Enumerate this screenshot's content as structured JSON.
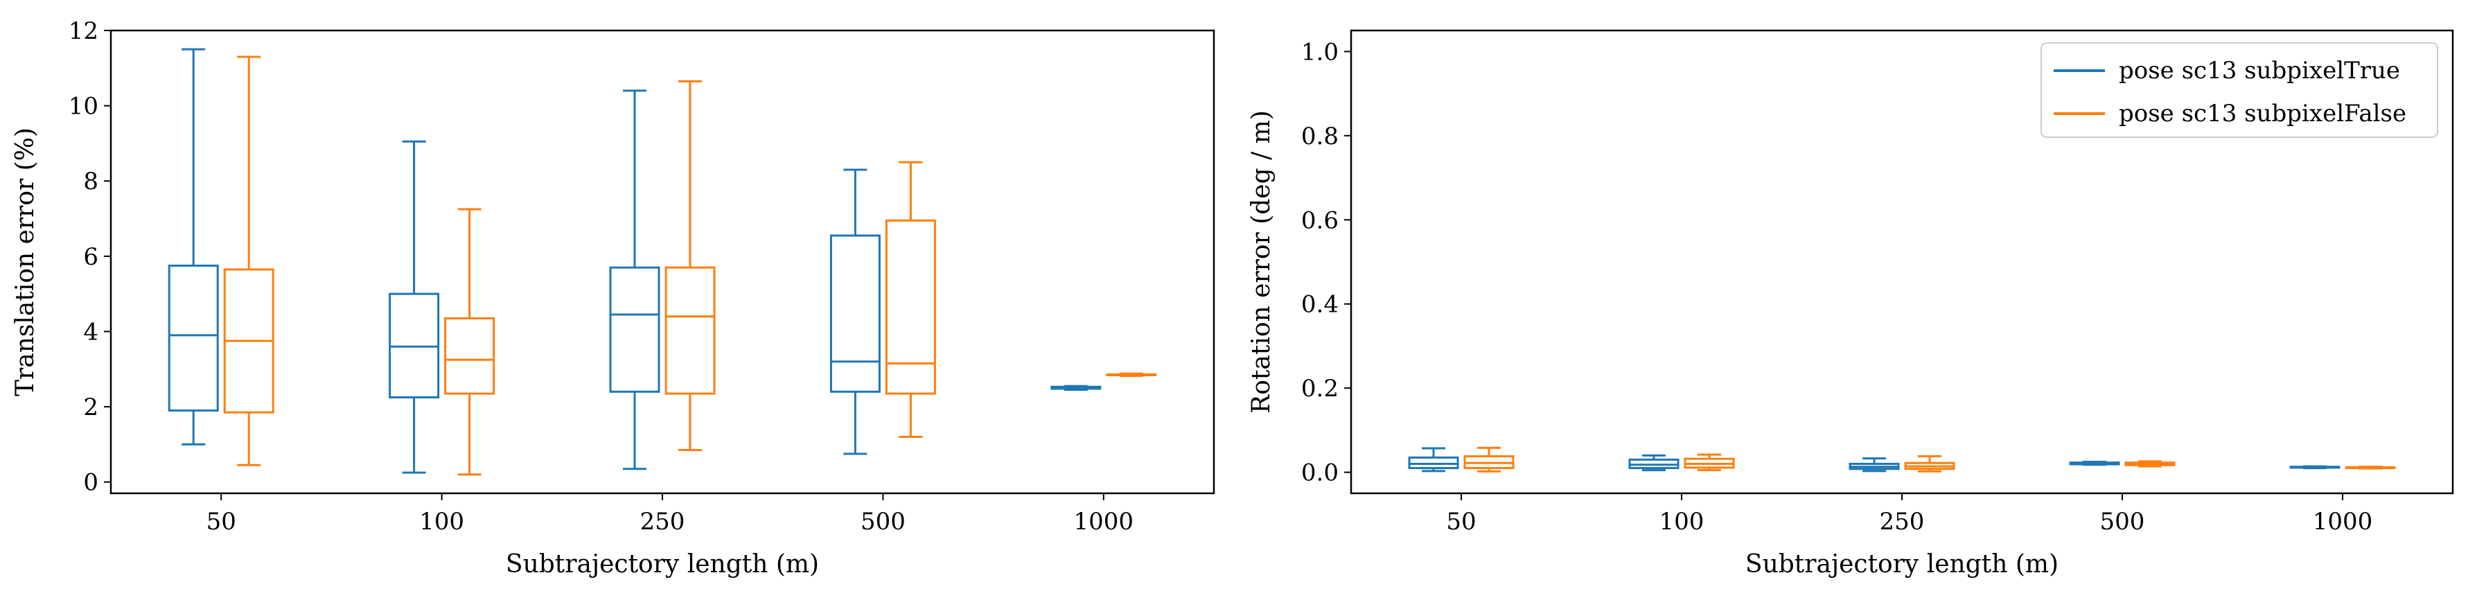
{
  "chart_data": [
    {
      "type": "box",
      "categories": [
        "50",
        "100",
        "250",
        "500",
        "1000"
      ],
      "xlabel": "Subtrajectory length (m)",
      "ylabel": "Translation error (%)",
      "ylim": [
        -0.3,
        12
      ],
      "yticks": [
        0,
        2,
        4,
        6,
        8,
        10,
        12
      ],
      "grid": false,
      "legend": "none",
      "colors": [
        "#1f77b4",
        "#ff7f0e"
      ],
      "series": [
        {
          "boxes": [
            {
              "whisker_low": 1.0,
              "q1": 1.9,
              "median": 3.9,
              "q3": 5.75,
              "whisker_high": 11.5
            },
            {
              "whisker_low": 0.25,
              "q1": 2.25,
              "median": 3.6,
              "q3": 5.0,
              "whisker_high": 9.05
            },
            {
              "whisker_low": 0.35,
              "q1": 2.4,
              "median": 4.45,
              "q3": 5.7,
              "whisker_high": 10.4
            },
            {
              "whisker_low": 0.75,
              "q1": 2.4,
              "median": 3.2,
              "q3": 6.55,
              "whisker_high": 8.3
            },
            {
              "whisker_low": 2.45,
              "q1": 2.48,
              "median": 2.5,
              "q3": 2.53,
              "whisker_high": 2.55
            }
          ]
        },
        {
          "boxes": [
            {
              "whisker_low": 0.45,
              "q1": 1.85,
              "median": 3.75,
              "q3": 5.65,
              "whisker_high": 11.3
            },
            {
              "whisker_low": 0.2,
              "q1": 2.35,
              "median": 3.25,
              "q3": 4.35,
              "whisker_high": 7.25
            },
            {
              "whisker_low": 0.85,
              "q1": 2.35,
              "median": 4.4,
              "q3": 5.7,
              "whisker_high": 10.65
            },
            {
              "whisker_low": 1.2,
              "q1": 2.35,
              "median": 3.15,
              "q3": 6.95,
              "whisker_high": 8.5
            },
            {
              "whisker_low": 2.82,
              "q1": 2.84,
              "median": 2.85,
              "q3": 2.86,
              "whisker_high": 2.88
            }
          ]
        }
      ]
    },
    {
      "type": "box",
      "categories": [
        "50",
        "100",
        "250",
        "500",
        "1000"
      ],
      "xlabel": "Subtrajectory length (m)",
      "ylabel": "Rotation error (deg / m)",
      "ylim": [
        -0.05,
        1.05
      ],
      "yticks": [
        "0.0",
        "0.2",
        "0.4",
        "0.6",
        "0.8",
        "1.0"
      ],
      "grid": false,
      "legend": "top-right",
      "colors": [
        "#1f77b4",
        "#ff7f0e"
      ],
      "series": [
        {
          "name": "pose sc13 subpixelTrue",
          "boxes": [
            {
              "whisker_low": 0.003,
              "q1": 0.01,
              "median": 0.02,
              "q3": 0.035,
              "whisker_high": 0.057
            },
            {
              "whisker_low": 0.005,
              "q1": 0.01,
              "median": 0.018,
              "q3": 0.03,
              "whisker_high": 0.04
            },
            {
              "whisker_low": 0.003,
              "q1": 0.008,
              "median": 0.013,
              "q3": 0.02,
              "whisker_high": 0.033
            },
            {
              "whisker_low": 0.018,
              "q1": 0.019,
              "median": 0.021,
              "q3": 0.023,
              "whisker_high": 0.025
            },
            {
              "whisker_low": 0.01,
              "q1": 0.011,
              "median": 0.012,
              "q3": 0.013,
              "whisker_high": 0.014
            }
          ]
        },
        {
          "name": "pose sc13 subpixelFalse",
          "boxes": [
            {
              "whisker_low": 0.002,
              "q1": 0.01,
              "median": 0.022,
              "q3": 0.038,
              "whisker_high": 0.058
            },
            {
              "whisker_low": 0.005,
              "q1": 0.011,
              "median": 0.02,
              "q3": 0.032,
              "whisker_high": 0.042
            },
            {
              "whisker_low": 0.002,
              "q1": 0.008,
              "median": 0.014,
              "q3": 0.022,
              "whisker_high": 0.038
            },
            {
              "whisker_low": 0.014,
              "q1": 0.017,
              "median": 0.02,
              "q3": 0.023,
              "whisker_high": 0.026
            },
            {
              "whisker_low": 0.009,
              "q1": 0.01,
              "median": 0.011,
              "q3": 0.012,
              "whisker_high": 0.013
            }
          ]
        }
      ]
    }
  ]
}
